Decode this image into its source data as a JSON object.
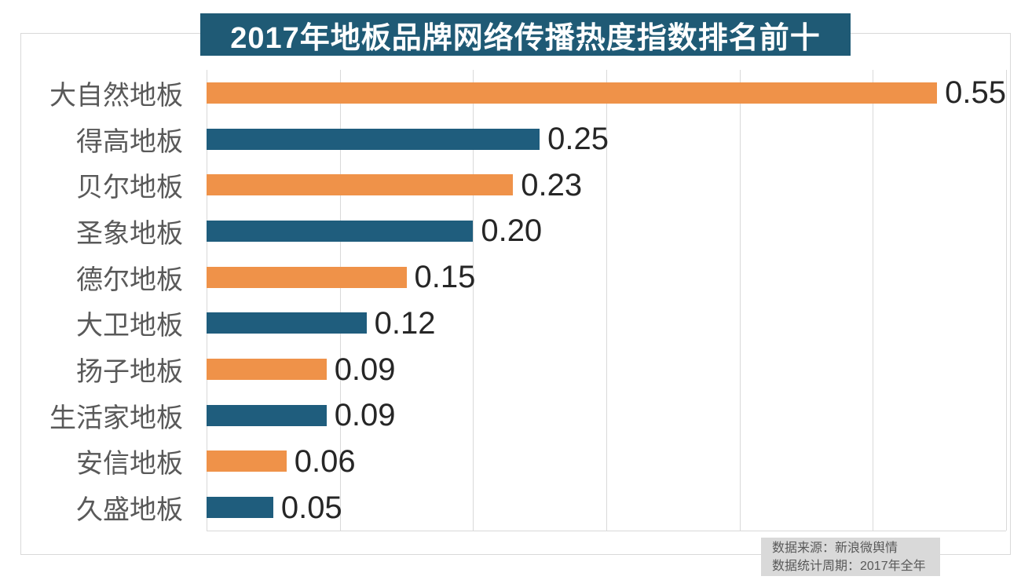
{
  "page": {
    "background": "#FFFFFF"
  },
  "chart_data": {
    "type": "bar",
    "orientation": "horizontal",
    "title": "2017年地板品牌网络传播热度指数排名前十",
    "categories": [
      "大自然地板",
      "得高地板",
      "贝尔地板",
      "圣象地板",
      "德尔地板",
      "大卫地板",
      "扬子地板",
      "生活家地板",
      "安信地板",
      "久盛地板"
    ],
    "values": [
      0.55,
      0.25,
      0.23,
      0.2,
      0.15,
      0.12,
      0.09,
      0.09,
      0.06,
      0.05
    ],
    "value_labels": [
      "0.55",
      "0.25",
      "0.23",
      "0.20",
      "0.15",
      "0.12",
      "0.09",
      "0.09",
      "0.06",
      "0.05"
    ],
    "bar_colors": [
      "#EF9249",
      "#1F5D7D",
      "#EF9249",
      "#1F5D7D",
      "#EF9249",
      "#1F5D7D",
      "#EF9249",
      "#1F5D7D",
      "#EF9249",
      "#1F5D7D"
    ],
    "xlim": [
      0,
      0.6
    ],
    "gridline_interval": 0.1,
    "grid": true,
    "legend": null,
    "xlabel": "",
    "ylabel": ""
  },
  "colors": {
    "title_banner_bg": "#1F5A75",
    "title_text": "#FFFFFF",
    "orange_bar": "#EF9249",
    "blue_bar": "#1F5D7D",
    "gridline": "#D9D9D9",
    "frame_border": "#D9D9D9",
    "category_label": "#595959",
    "value_label": "#262626",
    "source_box_bg": "#D9D9D9",
    "source_text": "#595959"
  },
  "source_note": {
    "line1": "数据来源：新浪微舆情",
    "line2": "数据统计周期：2017年全年"
  }
}
